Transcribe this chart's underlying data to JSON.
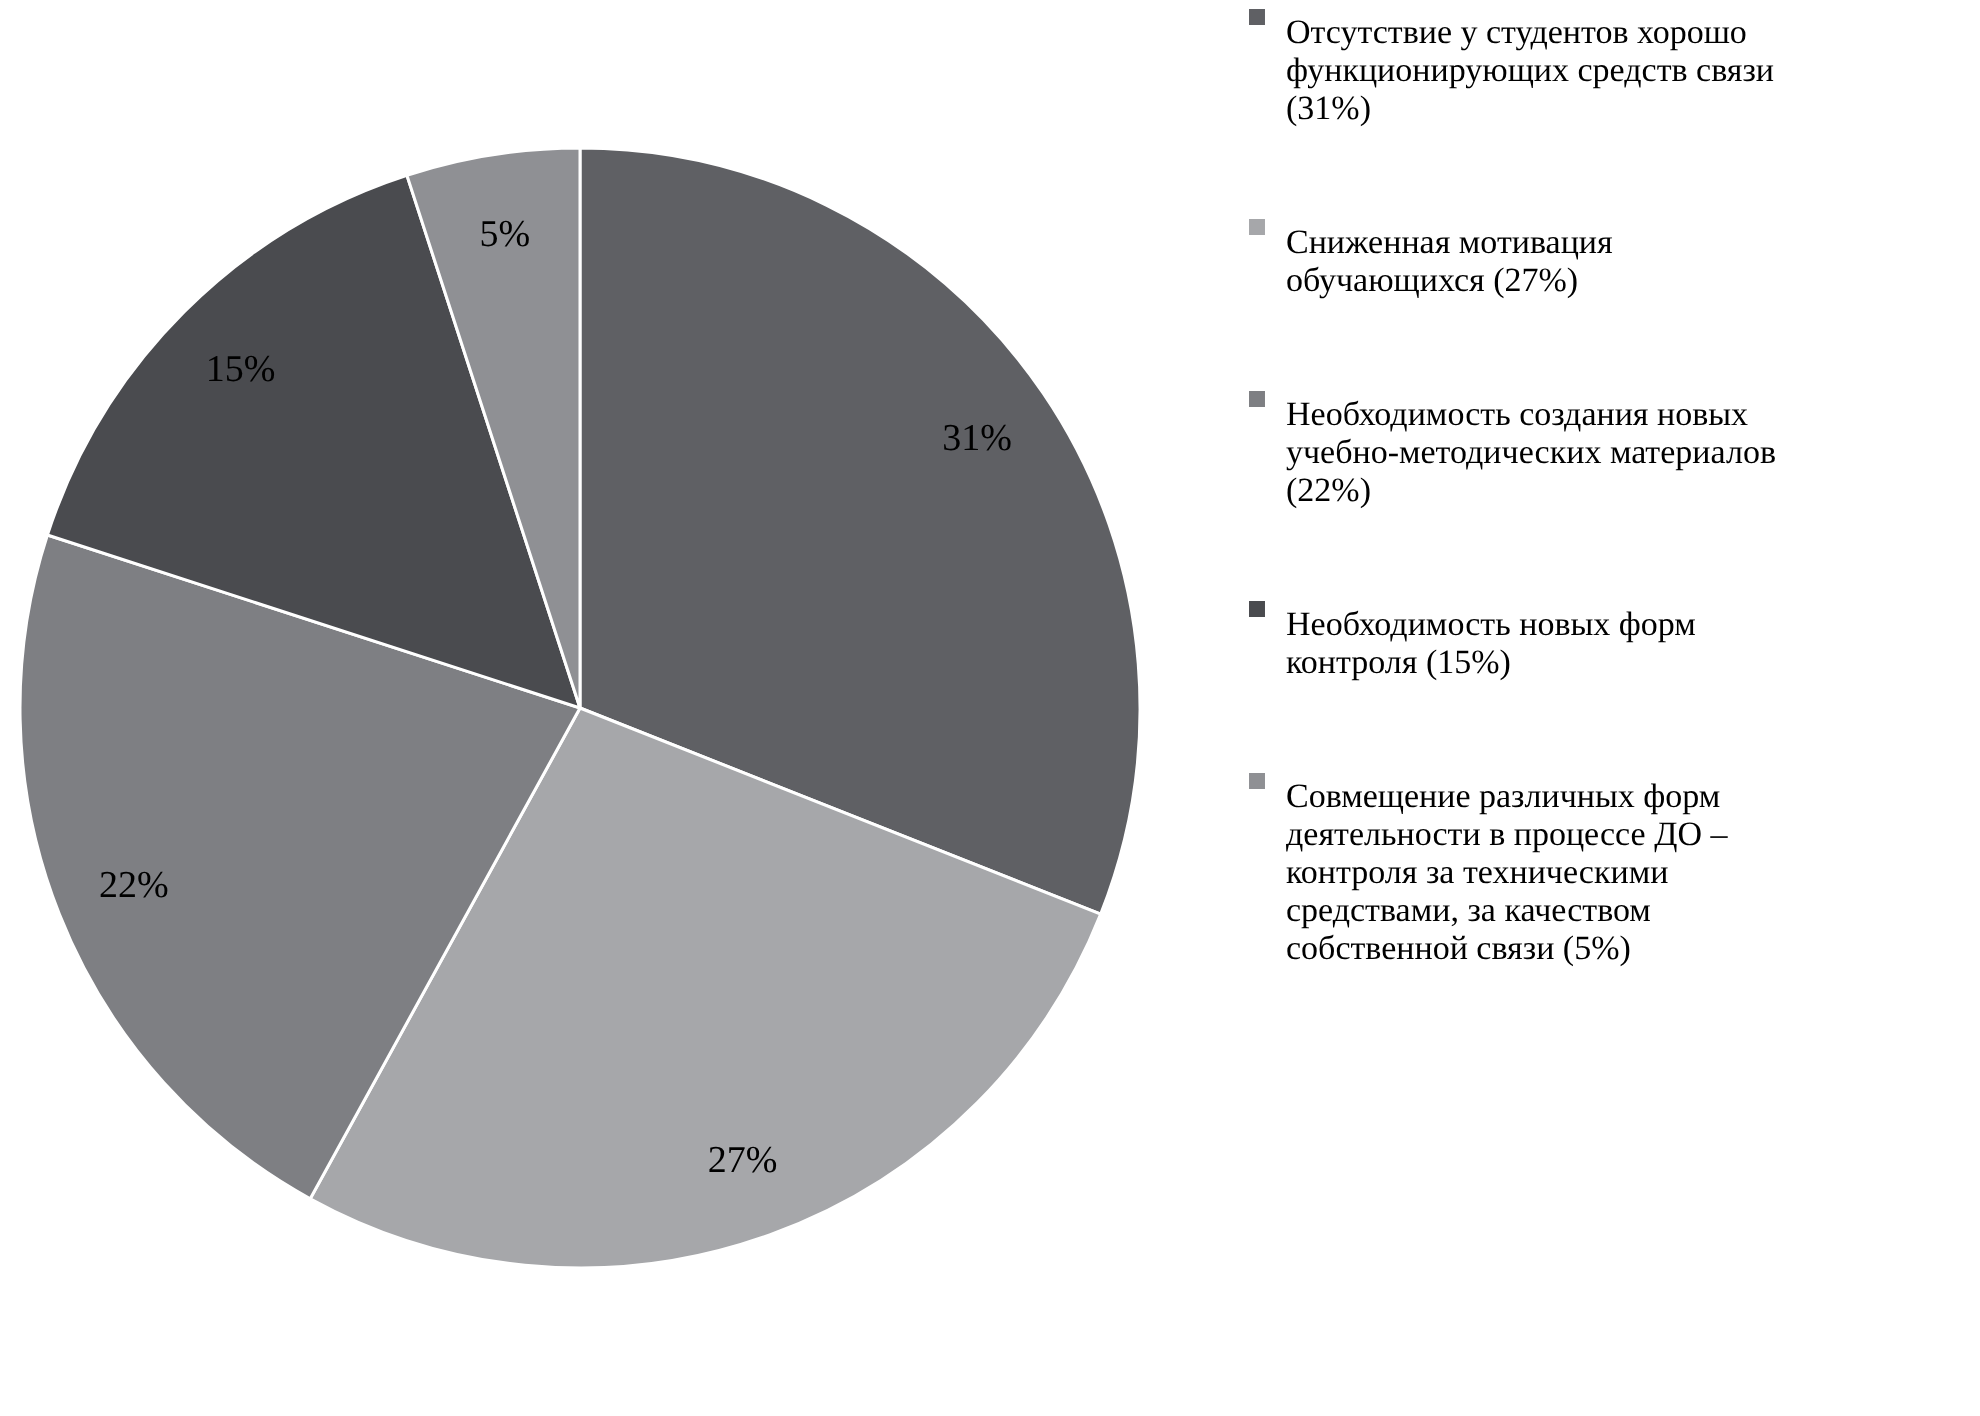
{
  "chart_data": {
    "type": "pie",
    "categories": [
      "Отсутствие у студентов хорошо функционирующих средств связи (31%)",
      "Сниженная мотивация обучающихся (27%)",
      "Необходимость создания новых учебно-методических материалов (22%)",
      "Необходимость новых форм контроля (15%)",
      "Совмещение различных форм деятельности в процессе ДО – контроля за техническими средствами, за качеством собственной связи (5%)"
    ],
    "values": [
      31,
      27,
      22,
      15,
      5
    ],
    "value_labels": [
      "31%",
      "27%",
      "22%",
      "15%",
      "5%"
    ],
    "colors": [
      "#5f6064",
      "#a6a7aa",
      "#7e7f83",
      "#4a4b4f",
      "#8f9094"
    ],
    "legend": "right"
  }
}
